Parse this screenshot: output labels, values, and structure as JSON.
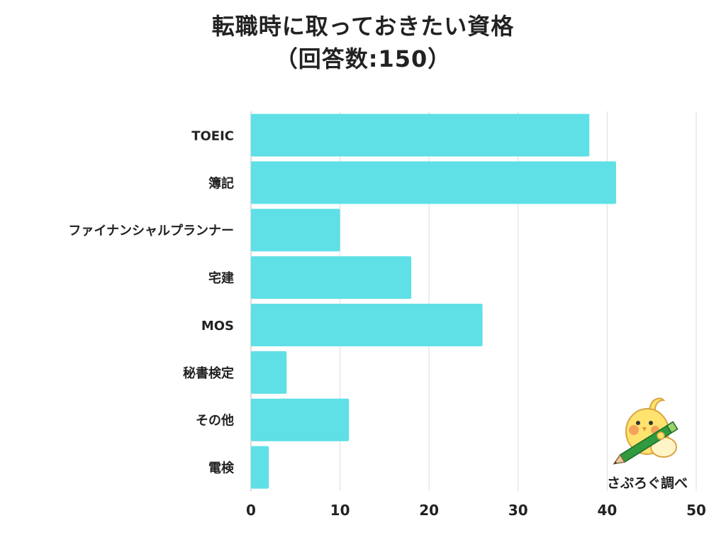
{
  "title": {
    "line1": "転職時に取っておきたい資格",
    "line2": "（回答数:150）"
  },
  "chart_data": {
    "type": "bar",
    "orientation": "horizontal",
    "categories": [
      "TOEIC",
      "簿記",
      "ファイナンシャルプランナー",
      "宅建",
      "MOS",
      "秘書検定",
      "その他",
      "電検"
    ],
    "values": [
      38,
      41,
      10,
      18,
      26,
      4,
      11,
      2
    ],
    "xlim": [
      0,
      50
    ],
    "xticks": [
      0,
      10,
      20,
      30,
      40,
      50
    ],
    "grid": true,
    "bar_color": "#5ee0e6"
  },
  "credit": {
    "text": "さぷろぐ調べ",
    "icon": "pencil-bird-icon"
  },
  "colors": {
    "grid": "#dddddd",
    "text": "#222222",
    "mascot_body": "#ffe36e",
    "pencil": "#2f9a3e"
  }
}
